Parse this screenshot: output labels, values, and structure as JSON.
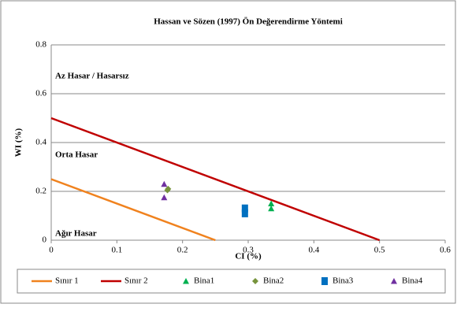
{
  "chart_data": {
    "type": "scatter",
    "title": "Hassan ve Sözen (1997) Ön Değerendirme Yöntemi",
    "x_label": "CI (%)",
    "y_label": "WI (%)",
    "annotations": [
      "Az Hasar / Hasarsız",
      "Orta Hasar",
      "Ağır Hasar"
    ],
    "xlim": [
      0,
      0.6
    ],
    "xticks": [
      0,
      0.1,
      0.2,
      0.3,
      0.4,
      0.5,
      0.6
    ],
    "ylim": [
      0,
      0.8
    ],
    "yticks": [
      0,
      0.2,
      0.4,
      0.6,
      0.8
    ],
    "grid": true,
    "legend": "bottom",
    "series": [
      {
        "name": "Sınır 1",
        "color": "#f0821e",
        "marker": "line",
        "x": [
          0,
          0.25
        ],
        "values": [
          0.25,
          0
        ]
      },
      {
        "name": "Sınır 2",
        "color": "#c00000",
        "marker": "line",
        "x": [
          0,
          0.5
        ],
        "values": [
          0.5,
          0
        ]
      },
      {
        "name": "Bina1",
        "color": "#00b050",
        "marker": "triangle",
        "x": [
          0.335,
          0.335
        ],
        "values": [
          0.15,
          0.13
        ]
      },
      {
        "name": "Bina2",
        "color": "#77933c",
        "marker": "diamond",
        "x": [
          0.177,
          0.178
        ],
        "values": [
          0.205,
          0.21
        ]
      },
      {
        "name": "Bina3",
        "color": "#0070c0",
        "marker": "square",
        "x": [
          0.295,
          0.295
        ],
        "values": [
          0.13,
          0.11
        ]
      },
      {
        "name": "Bina4",
        "color": "#7030a0",
        "marker": "triangle",
        "x": [
          0.172,
          0.172
        ],
        "values": [
          0.23,
          0.175
        ]
      }
    ]
  }
}
